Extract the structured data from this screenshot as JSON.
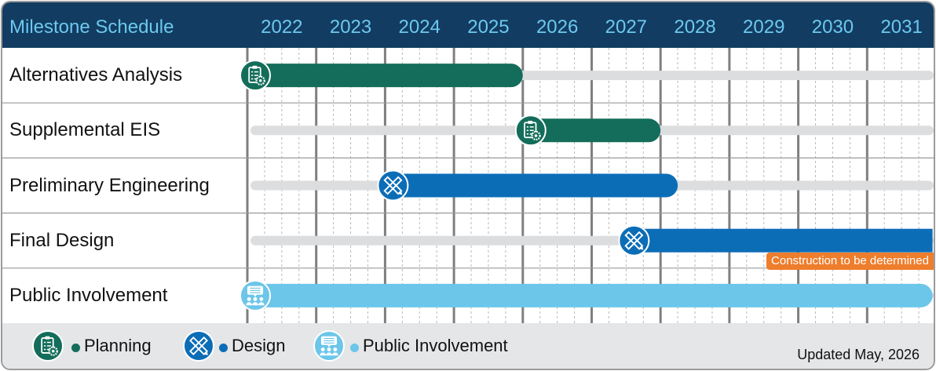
{
  "header": {
    "title": "Milestone Schedule",
    "years": [
      "2022",
      "2023",
      "2024",
      "2025",
      "2026",
      "2027",
      "2028",
      "2029",
      "2030",
      "2031"
    ]
  },
  "rows": [
    {
      "label": "Alternatives Analysis",
      "phase": "planning",
      "start": 2022.0,
      "end": 2026.0
    },
    {
      "label": "Supplemental EIS",
      "phase": "planning",
      "start": 2026.0,
      "end": 2028.0
    },
    {
      "label": "Preliminary Engineering",
      "phase": "design",
      "start": 2024.0,
      "end": 2028.25
    },
    {
      "label": "Final Design",
      "phase": "design",
      "start": 2027.5,
      "end": 2031.95
    },
    {
      "label": "Public Involvement",
      "phase": "public",
      "start": 2022.0,
      "end": 2031.95
    }
  ],
  "construction_note": "Construction to be determined",
  "legend": [
    {
      "key": "planning",
      "label": "Planning",
      "icon": "clipboard-gear-icon"
    },
    {
      "key": "design",
      "label": "Design",
      "icon": "pencil-ruler-icon"
    },
    {
      "key": "public",
      "label": "Public Involvement",
      "icon": "people-speech-icon"
    }
  ],
  "updated": "Updated May, 2026",
  "colors": {
    "header_bg": "#123c61",
    "header_text": "#6dc8ef",
    "planning": "#136d5a",
    "design": "#0c6db7",
    "public": "#6bc6ea",
    "track": "#dcdddf",
    "construction": "#ee7d2c",
    "legend_bg": "#e4e6e8"
  }
}
